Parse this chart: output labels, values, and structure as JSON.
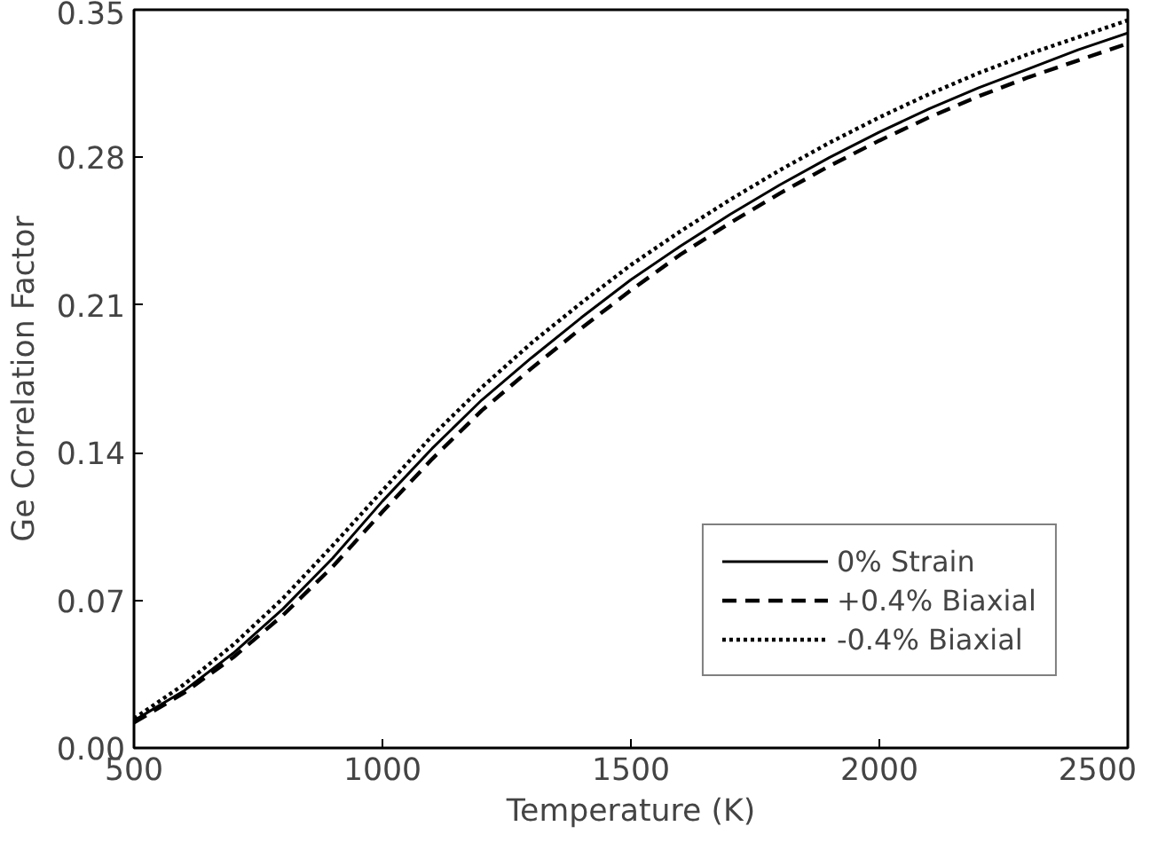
{
  "chart_data": {
    "type": "line",
    "xlabel": "Temperature (K)",
    "ylabel": "Ge Correlation Factor",
    "x": [
      500,
      600,
      700,
      800,
      900,
      1000,
      1100,
      1200,
      1300,
      1400,
      1500,
      1600,
      1700,
      1800,
      1900,
      2000,
      2100,
      2200,
      2300,
      2400,
      2500
    ],
    "xlim": [
      500,
      2500
    ],
    "xticks": [
      500,
      1000,
      1500,
      2000,
      2500
    ],
    "ylim": [
      0,
      0.35
    ],
    "yticks": [
      {
        "value": 0,
        "label": "0.00"
      },
      {
        "value": 0.07,
        "label": "0.07"
      },
      {
        "value": 0.14,
        "label": "0.14"
      },
      {
        "value": 0.21,
        "label": "0.21"
      },
      {
        "value": 0.28,
        "label": "0.28"
      },
      {
        "value": 0.35,
        "label": "0.35"
      }
    ],
    "grid": false,
    "legend": "bottom right",
    "series": [
      {
        "name": "0% Strain",
        "color": "#000000",
        "line_style": "solid",
        "values": [
          0.013,
          0.027,
          0.045,
          0.066,
          0.09,
          0.117,
          0.142,
          0.165,
          0.185,
          0.204,
          0.222,
          0.238,
          0.253,
          0.267,
          0.28,
          0.292,
          0.303,
          0.313,
          0.322,
          0.331,
          0.339
        ]
      },
      {
        "name": "+0.4% Biaxial",
        "color": "#000000",
        "line_style": "dashed",
        "values": [
          0.012,
          0.026,
          0.043,
          0.063,
          0.086,
          0.112,
          0.137,
          0.16,
          0.18,
          0.199,
          0.217,
          0.234,
          0.249,
          0.263,
          0.276,
          0.288,
          0.299,
          0.309,
          0.318,
          0.326,
          0.334
        ]
      },
      {
        "name": "-0.4% Biaxial",
        "color": "#000000",
        "line_style": "dotted",
        "values": [
          0.014,
          0.03,
          0.049,
          0.071,
          0.096,
          0.122,
          0.148,
          0.171,
          0.192,
          0.211,
          0.229,
          0.245,
          0.26,
          0.274,
          0.287,
          0.299,
          0.31,
          0.32,
          0.329,
          0.337,
          0.345
        ]
      }
    ]
  }
}
